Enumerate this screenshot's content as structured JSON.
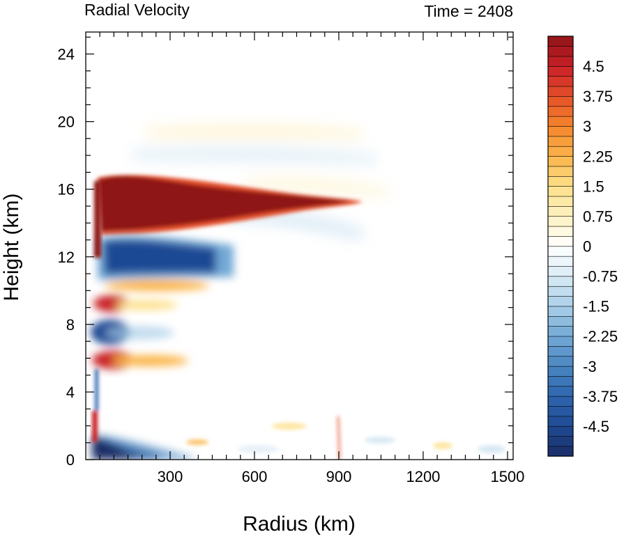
{
  "chart_data": {
    "type": "heatmap",
    "title_left": "Radial Velocity",
    "title_right": "Time = 2408",
    "xlabel": "Radius (km)",
    "ylabel": "Height (km)",
    "xlim": [
      0,
      1520
    ],
    "ylim": [
      0,
      25.3
    ],
    "x_ticks": [
      300,
      600,
      900,
      1200,
      1500
    ],
    "x_tick_labels": [
      "300",
      "600",
      "900",
      "1200",
      "1500"
    ],
    "y_ticks": [
      0,
      4,
      8,
      12,
      16,
      20,
      24
    ],
    "y_tick_labels": [
      "0",
      "4",
      "8",
      "12",
      "16",
      "20",
      "24"
    ],
    "grid": false,
    "colorbar": {
      "levels": [
        -5.25,
        -5,
        -4.75,
        -4.5,
        -4.25,
        -4,
        -3.75,
        -3.5,
        -3.25,
        -3,
        -2.75,
        -2.5,
        -2.25,
        -2,
        -1.75,
        -1.5,
        -1.25,
        -1,
        -0.75,
        -0.5,
        -0.25,
        0,
        0.25,
        0.5,
        0.75,
        1,
        1.25,
        1.5,
        1.75,
        2,
        2.25,
        2.5,
        2.75,
        3,
        3.25,
        3.5,
        3.75,
        4,
        4.25,
        4.5,
        4.75,
        5,
        5.25
      ],
      "labels": [
        "4.5",
        "3.75",
        "3",
        "2.25",
        "1.5",
        "0.75",
        "0",
        "-0.75",
        "-1.5",
        "-2.25",
        "-3",
        "-3.75",
        "-4.5"
      ],
      "label_values": [
        4.5,
        3.75,
        3,
        2.25,
        1.5,
        0.75,
        0,
        -0.75,
        -1.5,
        -2.25,
        -3,
        -3.75,
        -4.5
      ],
      "stops": [
        {
          "v": -5.25,
          "color": "#1a2d66"
        },
        {
          "v": -4.5,
          "color": "#1f4a94"
        },
        {
          "v": -3.75,
          "color": "#2e65ad"
        },
        {
          "v": -3.0,
          "color": "#4a86c2"
        },
        {
          "v": -2.25,
          "color": "#72a9d6"
        },
        {
          "v": -1.5,
          "color": "#a9cfe8"
        },
        {
          "v": -0.75,
          "color": "#d8ebf5"
        },
        {
          "v": 0.0,
          "color": "#ffffff"
        },
        {
          "v": 0.75,
          "color": "#fdf2c2"
        },
        {
          "v": 1.5,
          "color": "#fde08a"
        },
        {
          "v": 2.25,
          "color": "#fbb54b"
        },
        {
          "v": 3.0,
          "color": "#f5862c"
        },
        {
          "v": 3.75,
          "color": "#e5502a"
        },
        {
          "v": 4.5,
          "color": "#c92027"
        },
        {
          "v": 5.25,
          "color": "#8f1418"
        }
      ]
    }
  }
}
